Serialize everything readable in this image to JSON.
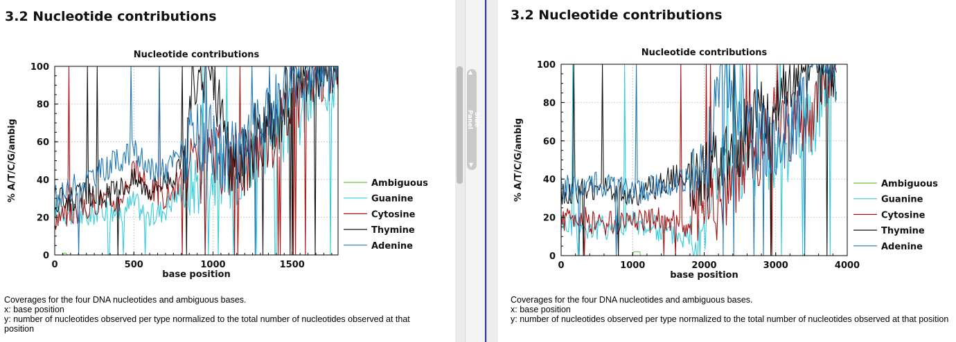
{
  "panes": [
    {
      "section_title": "3.2 Nucleotide contributions",
      "caption": [
        "Coverages for the four DNA nucleotides and ambiguous bases.",
        "x: base position",
        "y: number of nucleotides observed per type normalized to the total number of nucleotides observed at that position"
      ]
    },
    {
      "section_title": "3.2 Nucleotide contributions",
      "caption": [
        "Coverages for the four DNA nucleotides and ambiguous bases.",
        "x: base position",
        "y: number of nucleotides observed per type normalized to the total number of nucleotides observed at that position"
      ]
    }
  ],
  "side_panel": {
    "label": "Side Panel",
    "up_icon": "chevron-up-icon",
    "down_icon": "chevron-down-icon"
  },
  "colors": {
    "Ambiguous": "#66cc33",
    "Guanine": "#33ccdd",
    "Cytosine": "#aa1111",
    "Thymine": "#111111",
    "Adenine": "#1f77b4"
  },
  "chart_data": [
    {
      "type": "line",
      "title": "Nucleotide contributions",
      "xlabel": "base position",
      "ylabel": "% A/T/C/G/ambig",
      "xlim": [
        0,
        1790
      ],
      "ylim": [
        0,
        100
      ],
      "xticks": [
        0,
        500,
        1000,
        1500
      ],
      "yticks": [
        0,
        20,
        40,
        60,
        80,
        100
      ],
      "grid": true,
      "legend_position": "right",
      "series": [
        {
          "name": "Ambiguous",
          "x": [
            0,
            50,
            60,
            70,
            80,
            1790
          ],
          "values": [
            0,
            0,
            1,
            1,
            0,
            0
          ]
        },
        {
          "name": "Guanine",
          "x": [
            0,
            100,
            200,
            300,
            400,
            500,
            600,
            700,
            800,
            900,
            1000,
            1100,
            1200,
            1300,
            1400,
            1500,
            1600,
            1700,
            1790
          ],
          "values": [
            25,
            22,
            20,
            25,
            22,
            28,
            20,
            25,
            35,
            40,
            45,
            40,
            50,
            60,
            65,
            70,
            80,
            90,
            100
          ]
        },
        {
          "name": "Cytosine",
          "x": [
            0,
            100,
            200,
            300,
            400,
            500,
            600,
            700,
            800,
            900,
            1000,
            1100,
            1200,
            1300,
            1400,
            1500,
            1600,
            1700,
            1790
          ],
          "values": [
            20,
            22,
            25,
            30,
            28,
            45,
            35,
            30,
            40,
            45,
            50,
            50,
            50,
            60,
            67,
            80,
            90,
            100,
            100
          ]
        },
        {
          "name": "Thymine",
          "x": [
            0,
            100,
            200,
            300,
            400,
            500,
            600,
            700,
            800,
            900,
            1000,
            1100,
            1200,
            1300,
            1400,
            1500,
            1600,
            1700,
            1790
          ],
          "values": [
            28,
            30,
            32,
            30,
            35,
            40,
            35,
            40,
            45,
            100,
            100,
            50,
            50,
            67,
            67,
            100,
            100,
            100,
            100
          ]
        },
        {
          "name": "Adenine",
          "x": [
            0,
            100,
            200,
            300,
            400,
            500,
            600,
            700,
            800,
            900,
            1000,
            1100,
            1200,
            1300,
            1400,
            1500,
            1600,
            1700,
            1790
          ],
          "values": [
            30,
            35,
            40,
            45,
            50,
            55,
            45,
            45,
            55,
            60,
            60,
            50,
            55,
            67,
            80,
            100,
            100,
            100,
            100
          ]
        }
      ]
    },
    {
      "type": "line",
      "title": "Nucleotide contributions",
      "xlabel": "base position",
      "ylabel": "% A/T/C/G/ambig",
      "xlim": [
        0,
        4000
      ],
      "ylim": [
        0,
        100
      ],
      "xticks": [
        0,
        1000,
        2000,
        3000,
        4000
      ],
      "yticks": [
        0,
        20,
        40,
        60,
        80,
        100
      ],
      "grid": true,
      "legend_position": "right",
      "series": [
        {
          "name": "Ambiguous",
          "x": [
            0,
            1000,
            1010,
            1100,
            1110,
            3850
          ],
          "values": [
            0,
            0,
            2,
            2,
            0,
            0
          ]
        },
        {
          "name": "Guanine",
          "x": [
            0,
            250,
            500,
            750,
            1000,
            1250,
            1500,
            1750,
            2000,
            2250,
            2500,
            2750,
            3000,
            3250,
            3500,
            3750,
            3850
          ],
          "values": [
            18,
            15,
            14,
            16,
            18,
            15,
            12,
            10,
            20,
            50,
            40,
            50,
            55,
            60,
            67,
            100,
            100
          ]
        },
        {
          "name": "Cytosine",
          "x": [
            0,
            250,
            500,
            750,
            1000,
            1250,
            1500,
            1750,
            2000,
            2250,
            2500,
            2750,
            3000,
            3250,
            3500,
            3750,
            3850
          ],
          "values": [
            18,
            20,
            17,
            16,
            20,
            18,
            20,
            15,
            22,
            30,
            45,
            50,
            75,
            67,
            67,
            100,
            100
          ]
        },
        {
          "name": "Thymine",
          "x": [
            0,
            250,
            500,
            750,
            1000,
            1250,
            1500,
            1750,
            2000,
            2250,
            2500,
            2750,
            3000,
            3250,
            3500,
            3750,
            3850
          ],
          "values": [
            32,
            34,
            35,
            33,
            32,
            35,
            40,
            42,
            45,
            50,
            60,
            70,
            80,
            100,
            100,
            100,
            100
          ]
        },
        {
          "name": "Adenine",
          "x": [
            0,
            250,
            500,
            750,
            1000,
            1250,
            1500,
            1750,
            2000,
            2250,
            2500,
            2750,
            3000,
            3250,
            3500,
            3750,
            3850
          ],
          "values": [
            35,
            36,
            38,
            35,
            33,
            35,
            38,
            40,
            42,
            100,
            80,
            60,
            60,
            67,
            100,
            100,
            100
          ]
        }
      ]
    }
  ]
}
